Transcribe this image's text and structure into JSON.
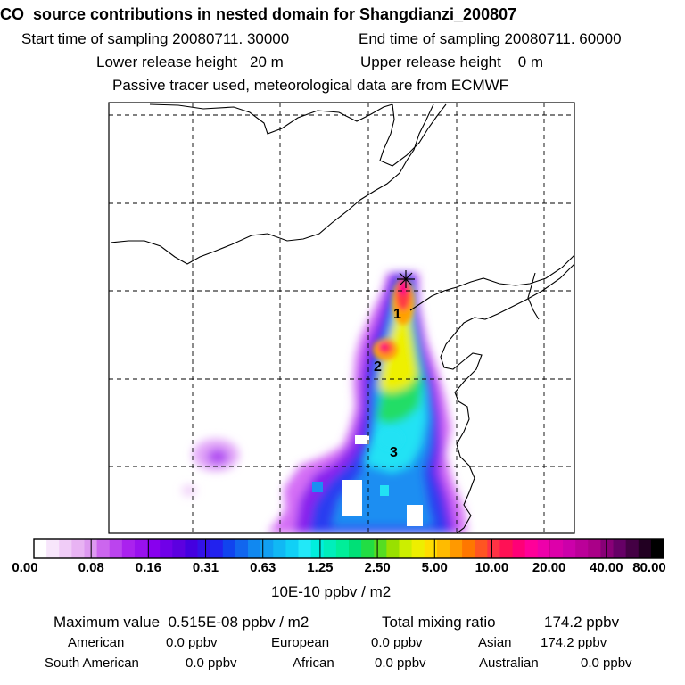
{
  "header": {
    "title": "CO  source contributions in nested domain for Shangdianzi_200807",
    "start_label": "Start time of sampling 20080711. 30000",
    "end_label": "End time of sampling 20080711. 60000",
    "lower_label": "Lower release height   20 m",
    "upper_label": "Upper release height    0 m",
    "tracer_note": "Passive tracer used, meteorological data are from ECMWF"
  },
  "map": {
    "markers": [
      "1",
      "2",
      "3"
    ],
    "receptor_icon": "asterisk-icon"
  },
  "colorbar": {
    "labels": [
      "0.00",
      "0.08",
      "0.16",
      "0.31",
      "0.63",
      "1.25",
      "2.50",
      "5.00",
      "10.00",
      "20.00",
      "40.00",
      "80.00"
    ],
    "colors": [
      "#ffffff",
      "#f7e6fb",
      "#f0ccf7",
      "#e8b3f3",
      "#dd99f0",
      "#cc66ee",
      "#bb44ee",
      "#aa22ee",
      "#9911ee",
      "#8800ee",
      "#7000e8",
      "#5c00e0",
      "#4400e0",
      "#3311e8",
      "#2222ee",
      "#1144ee",
      "#1166ee",
      "#1188f0",
      "#11a0f2",
      "#11b8f4",
      "#11d0f6",
      "#22e8f8",
      "#00eedd",
      "#00eebb",
      "#00ee99",
      "#00e077",
      "#22dd44",
      "#55dd22",
      "#99e000",
      "#ccee00",
      "#eeee00",
      "#ffdd00",
      "#ffbb00",
      "#ff9900",
      "#ff7700",
      "#ff5522",
      "#ff3344",
      "#ff1155",
      "#ff0077",
      "#ff0099",
      "#ee00aa",
      "#dd00aa",
      "#cc00aa",
      "#bb0099",
      "#aa0088",
      "#880077",
      "#660066",
      "#440044",
      "#220022",
      "#000000"
    ],
    "unit": "10E-10 ppbv / m2"
  },
  "stats": {
    "max_label": "Maximum value  0.515E-08 ppbv / m2",
    "total_label": "Total mixing ratio",
    "total_value": "174.2 ppbv",
    "sources": [
      {
        "name": "American",
        "value": "0.0 ppbv"
      },
      {
        "name": "European",
        "value": "0.0 ppbv"
      },
      {
        "name": "Asian",
        "value": "174.2 ppbv"
      },
      {
        "name": "South American",
        "value": "0.0 ppbv"
      },
      {
        "name": "African",
        "value": "0.0 ppbv"
      },
      {
        "name": "Australian",
        "value": "0.0 ppbv"
      }
    ]
  }
}
